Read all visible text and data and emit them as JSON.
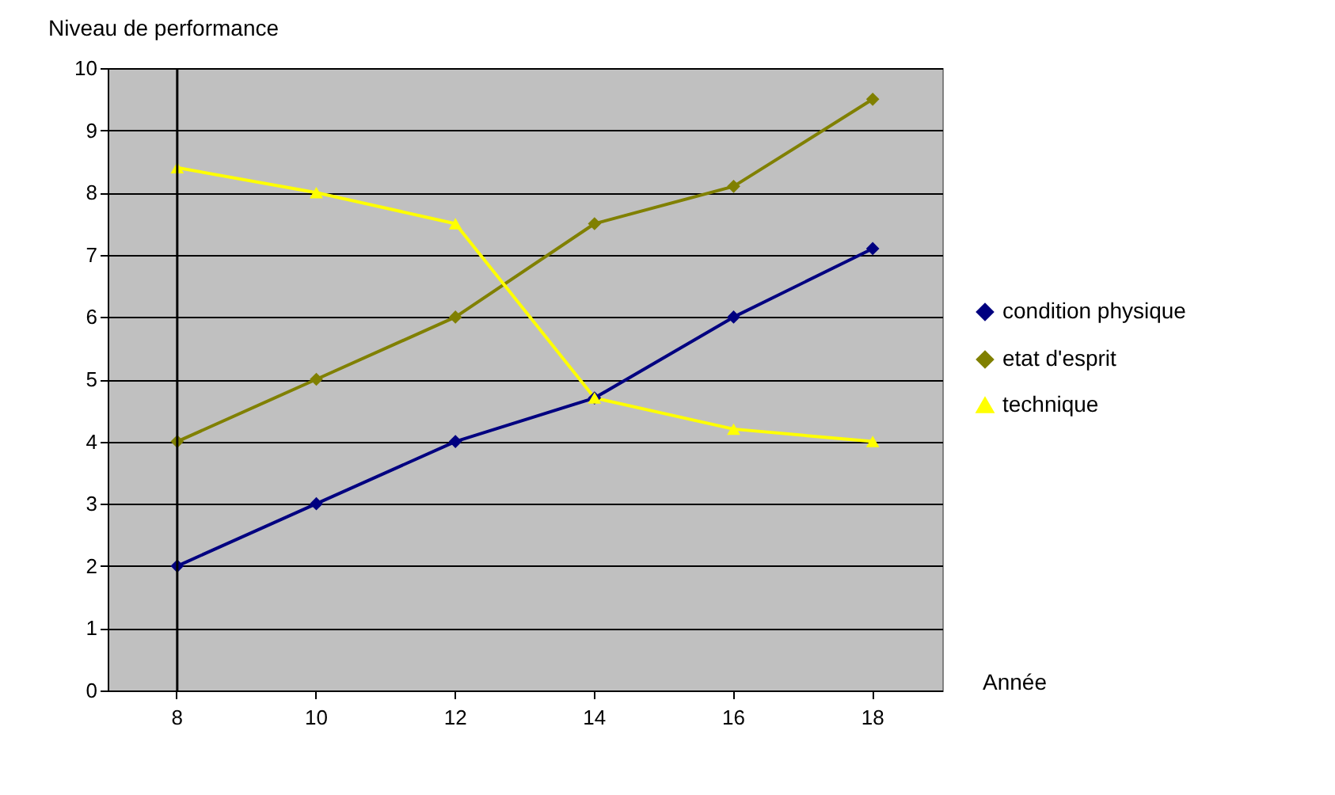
{
  "chart_data": {
    "type": "line",
    "ylabel": "Niveau de performance",
    "xlabel": "Année",
    "categories": [
      "8",
      "10",
      "12",
      "14",
      "16",
      "18"
    ],
    "ylim": [
      0,
      10
    ],
    "yticks": [
      0,
      1,
      2,
      3,
      4,
      5,
      6,
      7,
      8,
      9,
      10
    ],
    "grid": "y",
    "legend": "right",
    "series": [
      {
        "name": "condition physique",
        "color": "#000080",
        "marker": "diamond",
        "values": [
          2,
          3,
          4,
          4.7,
          6,
          7.1
        ]
      },
      {
        "name": "etat d'esprit",
        "color": "#808000",
        "marker": "diamond",
        "values": [
          4,
          5,
          6,
          7.5,
          8.1,
          9.5
        ]
      },
      {
        "name": "technique",
        "color": "#ffff00",
        "marker": "triangle",
        "values": [
          8.4,
          8,
          7.5,
          4.7,
          4.2,
          4
        ]
      }
    ],
    "ref_lines": [
      {
        "axis": "x",
        "value": "8",
        "color": "#000000"
      }
    ]
  }
}
